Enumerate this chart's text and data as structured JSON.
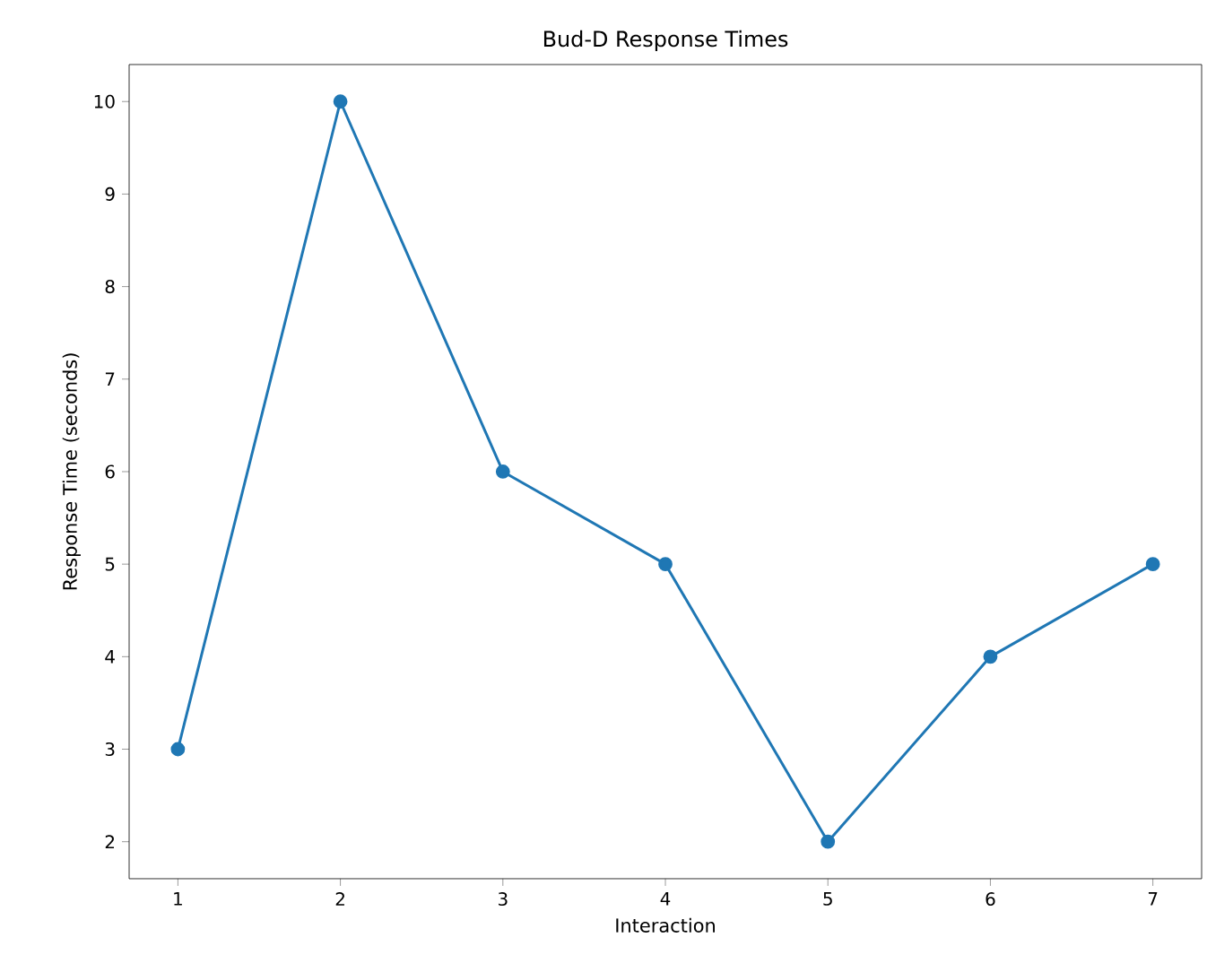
{
  "chart_data": {
    "type": "line",
    "title": "Bud-D Response Times",
    "xlabel": "Interaction",
    "ylabel": "Response Time (seconds)",
    "x": [
      1,
      2,
      3,
      4,
      5,
      6,
      7
    ],
    "series": [
      {
        "color": "#1f77b4",
        "values": [
          3,
          10,
          6,
          5,
          2,
          4,
          5
        ]
      }
    ],
    "xlim": [
      0.7,
      7.3
    ],
    "ylim": [
      1.6,
      10.4
    ],
    "xticks": [
      1,
      2,
      3,
      4,
      5,
      6,
      7
    ],
    "yticks": [
      2,
      3,
      4,
      5,
      6,
      7,
      8,
      9,
      10
    ],
    "marker": "circle",
    "line_style": "solid",
    "grid": false
  }
}
